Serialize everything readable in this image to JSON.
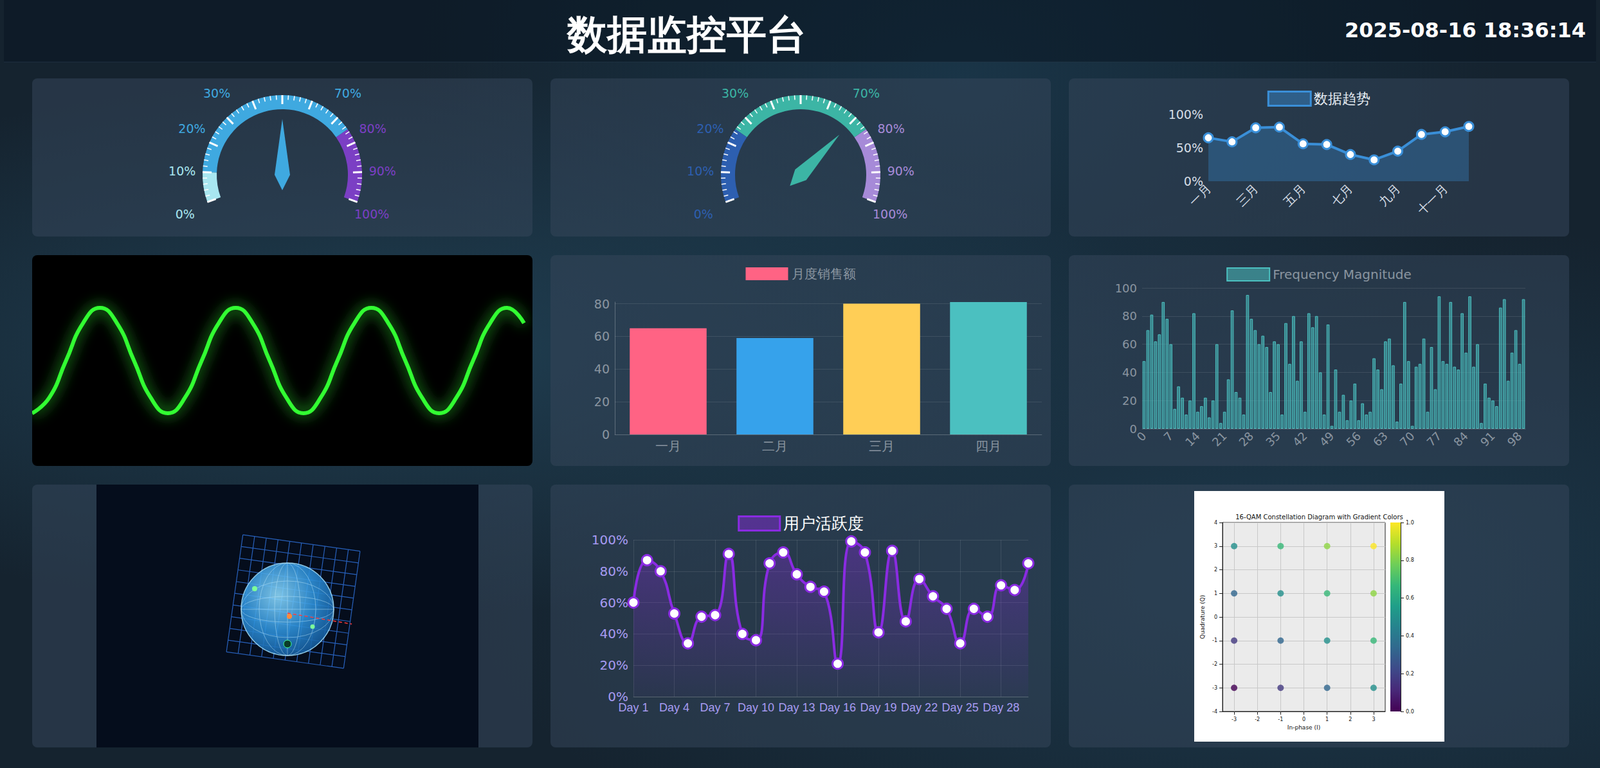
{
  "header": {
    "title": "数据监控平台",
    "time": "2025-08-16 18:36:14"
  },
  "chart_data": [
    {
      "type": "gauge",
      "value": 50,
      "range": [
        0,
        100
      ],
      "ticks": [
        {
          "value": 0,
          "label": "0%"
        },
        {
          "value": 10,
          "label": "10%"
        },
        {
          "value": 20,
          "label": "20%"
        },
        {
          "value": 30,
          "label": "30%"
        },
        {
          "value": 70,
          "label": "70%"
        },
        {
          "value": 80,
          "label": "80%"
        },
        {
          "value": 90,
          "label": "90%"
        },
        {
          "value": 100,
          "label": "100%"
        }
      ],
      "color": "#3fa9e0"
    },
    {
      "type": "gauge",
      "value": 70,
      "range": [
        0,
        100
      ],
      "ticks": [
        {
          "value": 0,
          "label": "0%"
        },
        {
          "value": 10,
          "label": "10%"
        },
        {
          "value": 20,
          "label": "20%"
        },
        {
          "value": 30,
          "label": "30%"
        },
        {
          "value": 70,
          "label": "70%"
        },
        {
          "value": 80,
          "label": "80%"
        },
        {
          "value": 90,
          "label": "90%"
        },
        {
          "value": 100,
          "label": "100%"
        }
      ],
      "color": "#3cb5a5"
    },
    {
      "type": "line",
      "categories": [
        "一月",
        null,
        "三月",
        null,
        "五月",
        null,
        "七月",
        null,
        "九月",
        null,
        "十一月",
        null
      ],
      "series": [
        {
          "name": "数据趋势",
          "color": "#3a8fd8",
          "values": [
            65,
            59,
            80,
            81,
            56,
            55,
            40,
            32,
            45,
            70,
            74,
            82
          ]
        }
      ],
      "ylim": [
        0,
        100
      ],
      "yticks": [
        {
          "value": 0,
          "label": "0%"
        },
        {
          "value": 50,
          "label": "50%"
        },
        {
          "value": 100,
          "label": "100%"
        }
      ],
      "legend": "top",
      "grid": false,
      "marker": "o",
      "line_style": "solid"
    },
    {
      "type": "line",
      "x": [
        0,
        1,
        2,
        3,
        4,
        5,
        6,
        7,
        8,
        9,
        10,
        11,
        12,
        13,
        14,
        15,
        16,
        17,
        18,
        19,
        20,
        21,
        22,
        23,
        24,
        25,
        26,
        27,
        28,
        29
      ],
      "values": [
        -1,
        -0.71,
        0,
        0.71,
        1,
        0.71,
        0,
        -0.71,
        -1,
        -0.71,
        0,
        0.71,
        1,
        0.71,
        0,
        -0.71,
        -1,
        -0.71,
        0,
        0.71,
        1,
        0.71,
        0,
        -0.71,
        -1,
        -0.71,
        0,
        0.71,
        1,
        0.71
      ],
      "xlim": [
        0,
        29.5
      ],
      "ylim": [
        -2,
        2
      ],
      "color": "#33ff33",
      "tick_labels": false,
      "grid": false,
      "line_style": "smooth"
    },
    {
      "type": "bar",
      "categories": [
        "一月",
        "二月",
        "三月",
        "四月"
      ],
      "series": [
        {
          "name": "月度销售额",
          "values": [
            65,
            59,
            80,
            81
          ]
        }
      ],
      "colors": [
        "#ff6384",
        "#36a2eb",
        "#ffce56",
        "#4bc0c0"
      ],
      "ylim": [
        0,
        81
      ],
      "yticks": [
        0,
        20,
        40,
        60,
        80
      ],
      "legend": "top",
      "grid": true
    },
    {
      "type": "bar",
      "categories": [
        0,
        null,
        null,
        null,
        null,
        null,
        null,
        7,
        null,
        null,
        null,
        null,
        null,
        null,
        14,
        null,
        null,
        null,
        null,
        null,
        null,
        21,
        null,
        null,
        null,
        null,
        null,
        null,
        28,
        null,
        null,
        null,
        null,
        null,
        null,
        35,
        null,
        null,
        null,
        null,
        null,
        null,
        42,
        null,
        null,
        null,
        null,
        null,
        null,
        49,
        null,
        null,
        null,
        null,
        null,
        null,
        56,
        null,
        null,
        null,
        null,
        null,
        null,
        63,
        null,
        null,
        null,
        null,
        null,
        null,
        70,
        null,
        null,
        null,
        null,
        null,
        null,
        77,
        null,
        null,
        null,
        null,
        null,
        null,
        84,
        null,
        null,
        null,
        null,
        null,
        null,
        91,
        null,
        null,
        null,
        null,
        null,
        null,
        98,
        null
      ],
      "series": [
        {
          "name": "Frequency Magnitude",
          "color": "#4bc0c0",
          "values": [
            48,
            70,
            81,
            62,
            67,
            90,
            78,
            60,
            14,
            30,
            22,
            10,
            20,
            82,
            12,
            16,
            22,
            8,
            20,
            60,
            4,
            12,
            35,
            84,
            26,
            22,
            10,
            95,
            78,
            70,
            60,
            66,
            58,
            26,
            62,
            60,
            10,
            75,
            46,
            80,
            34,
            62,
            12,
            82,
            72,
            80,
            40,
            10,
            74,
            2,
            42,
            12,
            24,
            6,
            20,
            32,
            6,
            18,
            10,
            12,
            50,
            42,
            28,
            62,
            64,
            45,
            5,
            32,
            90,
            48,
            2,
            44,
            46,
            64,
            12,
            58,
            28,
            94,
            48,
            46,
            90,
            44,
            42,
            82,
            54,
            94,
            44,
            60,
            4,
            32,
            22,
            20,
            16,
            86,
            92,
            34,
            54,
            70,
            46,
            92
          ]
        }
      ],
      "ylim": [
        0,
        100
      ],
      "yticks": [
        0,
        20,
        40,
        60,
        80,
        100
      ],
      "legend": "top",
      "grid": true
    },
    {
      "type": "line",
      "categories": [
        "Day 1",
        null,
        null,
        "Day 4",
        null,
        null,
        "Day 7",
        null,
        null,
        "Day 10",
        null,
        null,
        "Day 13",
        null,
        null,
        "Day 16",
        null,
        null,
        "Day 19",
        null,
        null,
        "Day 22",
        null,
        null,
        "Day 25",
        null,
        null,
        "Day 28",
        null,
        null
      ],
      "series": [
        {
          "name": "用户活跃度",
          "color": "#8a2be2",
          "values": [
            60,
            87,
            80,
            53,
            34,
            51,
            52,
            91,
            40,
            36,
            85,
            92,
            78,
            70,
            67,
            21,
            99,
            92,
            41,
            93,
            48,
            75,
            64,
            56,
            34,
            56,
            51,
            71,
            68,
            85
          ]
        }
      ],
      "ylim": [
        0,
        100
      ],
      "yticks": [
        {
          "value": 0,
          "label": "0%"
        },
        {
          "value": 20,
          "label": "20%"
        },
        {
          "value": 40,
          "label": "40%"
        },
        {
          "value": 60,
          "label": "60%"
        },
        {
          "value": 80,
          "label": "80%"
        },
        {
          "value": 100,
          "label": "100%"
        }
      ],
      "legend": "top",
      "grid": true,
      "marker": "o",
      "line_style": "smooth"
    },
    {
      "type": "scatter",
      "title": "16-QAM Constellation Diagram with Gradient Colors",
      "x_label": "In-phase (I)",
      "y_label": "Quadrature (Q)",
      "x": [
        -3,
        -1,
        1,
        3,
        -3,
        -1,
        1,
        3,
        -3,
        -1,
        1,
        3,
        -3,
        -1,
        1,
        3
      ],
      "y": [
        3,
        3,
        3,
        3,
        1,
        1,
        1,
        1,
        -1,
        -1,
        -1,
        -1,
        -3,
        -3,
        -3,
        -3
      ],
      "values": [
        0.5,
        0.67,
        0.83,
        1.0,
        0.33,
        0.5,
        0.67,
        0.83,
        0.17,
        0.33,
        0.5,
        0.67,
        0.0,
        0.17,
        0.33,
        0.5
      ],
      "xlim": [
        -3.5,
        3.5
      ],
      "xticks": [
        -3,
        -2,
        -1,
        0,
        1,
        2,
        3
      ],
      "ylim": [
        -4,
        4
      ],
      "yticks": [
        -4,
        -3,
        -2,
        -1,
        0,
        1,
        2,
        3,
        4
      ],
      "colorbar": {
        "range": [
          0,
          1
        ],
        "ticks": [
          {
            "value": 0,
            "label": "0.0"
          },
          {
            "value": 0.2,
            "label": "0.2"
          },
          {
            "value": 0.4,
            "label": "0.4"
          },
          {
            "value": 0.6,
            "label": "0.6"
          },
          {
            "value": 0.8,
            "label": "0.8"
          },
          {
            "value": 1,
            "label": "1.0"
          }
        ]
      },
      "grid": true,
      "marker": "o"
    }
  ]
}
